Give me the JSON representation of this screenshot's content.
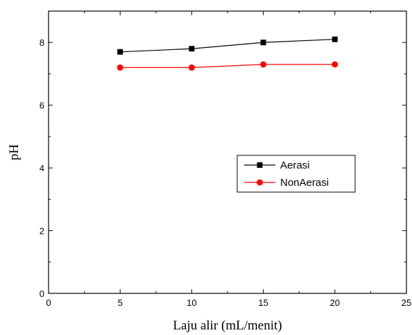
{
  "chart_data": {
    "type": "line",
    "xlabel": "Laju alir (mL/menit)",
    "ylabel": "pH",
    "xlim": [
      0,
      25
    ],
    "ylim": [
      0,
      9
    ],
    "xticks": [
      0,
      5,
      10,
      15,
      20,
      25
    ],
    "yticks": [
      0,
      2,
      4,
      6,
      8
    ],
    "x": [
      5,
      10,
      15,
      20
    ],
    "grid": false,
    "legend_position": "center-right",
    "series": [
      {
        "name": "Aerasi",
        "values": [
          7.7,
          7.8,
          8.0,
          8.1
        ],
        "color": "#000000",
        "marker": "square"
      },
      {
        "name": "NonAerasi",
        "values": [
          7.2,
          7.2,
          7.3,
          7.3
        ],
        "color": "#ff0000",
        "marker": "circle"
      }
    ]
  }
}
